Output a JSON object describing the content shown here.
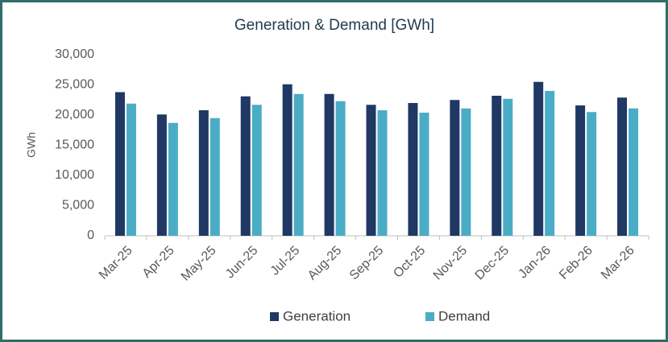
{
  "chart_data": {
    "type": "bar",
    "title": "Generation & Demand [GWh]",
    "y_label": "GWh",
    "categories": [
      "Mar-25",
      "Apr-25",
      "May-25",
      "Jun-25",
      "Jul-25",
      "Aug-25",
      "Sep-25",
      "Oct-25",
      "Nov-25",
      "Dec-25",
      "Jan-26",
      "Feb-26",
      "Mar-26"
    ],
    "series": [
      {
        "name": "Generation",
        "color": "#1f3864",
        "values": [
          23800,
          20100,
          20800,
          23100,
          25100,
          23500,
          21700,
          22000,
          22500,
          23200,
          25500,
          21600,
          22900
        ]
      },
      {
        "name": "Demand",
        "color": "#4bacc6",
        "values": [
          21900,
          18700,
          19500,
          21700,
          23500,
          22300,
          20800,
          20400,
          21100,
          22700,
          24000,
          20500,
          21100
        ]
      }
    ],
    "ylim": [
      0,
      30000
    ],
    "yticks": [
      0,
      {
        "value": 5000,
        "label": "5,000"
      },
      {
        "value": 10000,
        "label": "10,000"
      },
      {
        "value": 15000,
        "label": "15,000"
      },
      {
        "value": 20000,
        "label": "20,000"
      },
      {
        "value": 25000,
        "label": "25,000"
      },
      {
        "value": 30000,
        "label": "30,000"
      }
    ],
    "grid": false,
    "legend": "bottom"
  }
}
